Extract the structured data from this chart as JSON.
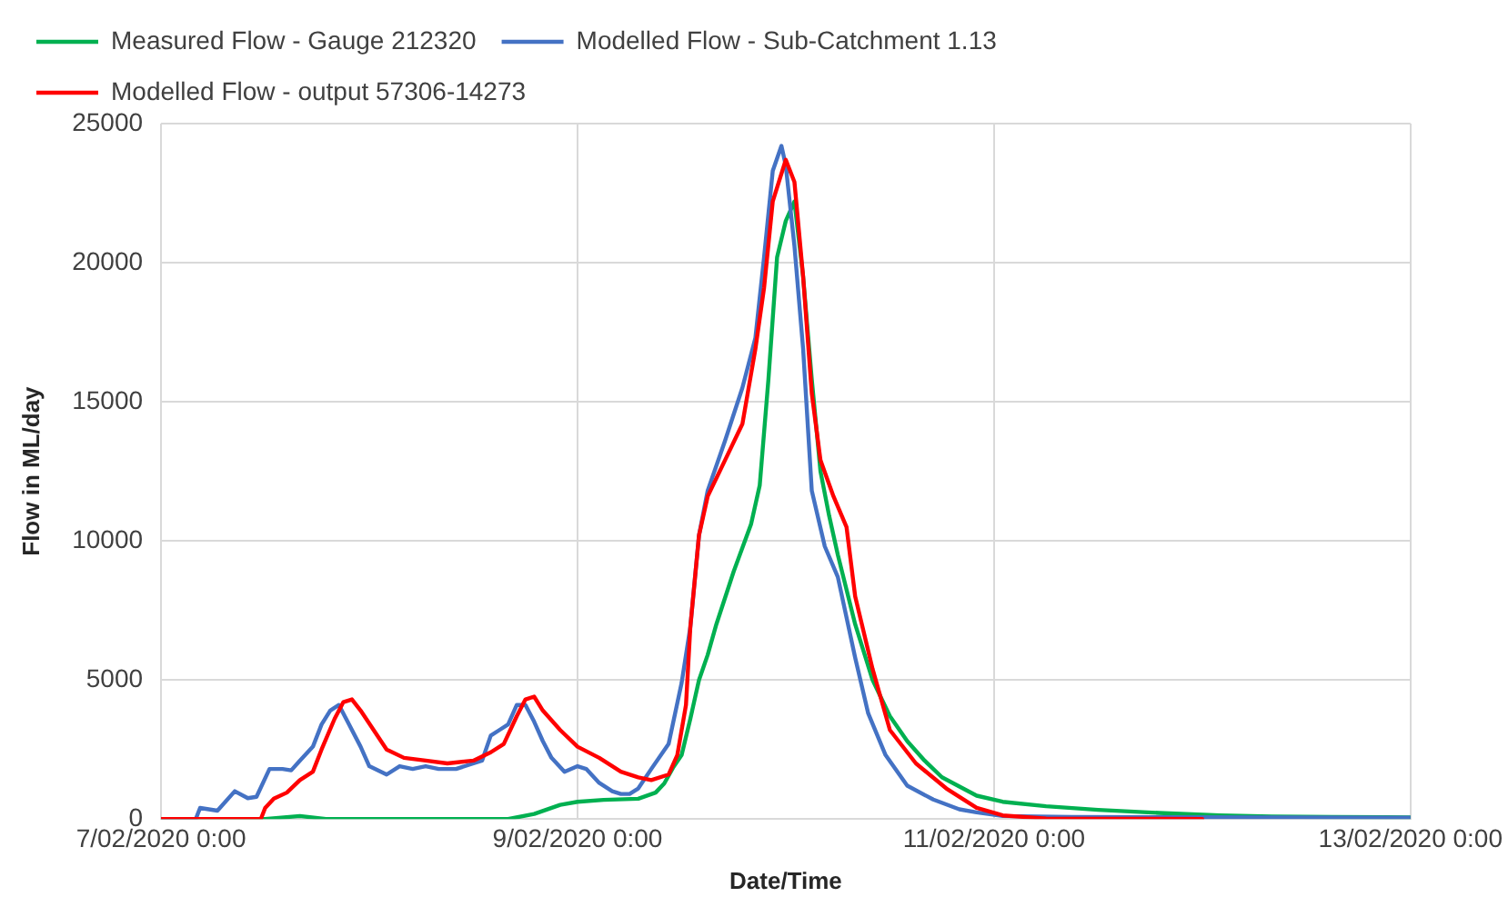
{
  "chart_data": {
    "type": "line",
    "xlabel": "Date/Time",
    "ylabel": "Flow in ML/day",
    "legend": "top",
    "grid": true,
    "marker": "none",
    "line_style": "solid",
    "xlim": [
      "2020-02-07T00:00",
      "2020-02-13T00:00"
    ],
    "xticks": [
      {
        "value": "2020-02-07T00:00",
        "label": "7/02/2020 0:00"
      },
      {
        "value": "2020-02-09T00:00",
        "label": "9/02/2020 0:00"
      },
      {
        "value": "2020-02-11T00:00",
        "label": "11/02/2020 0:00"
      },
      {
        "value": "2020-02-13T00:00",
        "label": "13/02/2020 0:00"
      }
    ],
    "ylim": [
      0,
      25000
    ],
    "yticks": [
      0,
      5000,
      10000,
      15000,
      20000,
      25000
    ],
    "series": [
      {
        "name": "Measured Flow - Gauge 212320",
        "color": "#00b050",
        "x": [
          "2020-02-07T00:00",
          "2020-02-07T12:00",
          "2020-02-07T16:00",
          "2020-02-07T19:00",
          "2020-02-08T16:00",
          "2020-02-08T19:00",
          "2020-02-08T22:00",
          "2020-02-09T00:00",
          "2020-02-09T03:00",
          "2020-02-09T07:00",
          "2020-02-09T09:00",
          "2020-02-09T10:00",
          "2020-02-09T11:00",
          "2020-02-09T12:00",
          "2020-02-09T13:00",
          "2020-02-09T14:00",
          "2020-02-09T15:00",
          "2020-02-09T16:00",
          "2020-02-09T18:00",
          "2020-02-09T20:00",
          "2020-02-09T21:00",
          "2020-02-09T22:00",
          "2020-02-09T23:00",
          "2020-02-10T00:00",
          "2020-02-10T01:00",
          "2020-02-10T02:00",
          "2020-02-10T03:00",
          "2020-02-10T04:00",
          "2020-02-10T05:00",
          "2020-02-10T06:00",
          "2020-02-10T08:00",
          "2020-02-10T10:00",
          "2020-02-10T12:00",
          "2020-02-10T14:00",
          "2020-02-10T16:00",
          "2020-02-10T18:00",
          "2020-02-10T22:00",
          "2020-02-11T01:00",
          "2020-02-11T06:00",
          "2020-02-11T12:00",
          "2020-02-11T19:00",
          "2020-02-12T02:00",
          "2020-02-12T08:00",
          "2020-02-12T15:00",
          "2020-02-13T00:00"
        ],
        "values": [
          0,
          0,
          110,
          0,
          0,
          180,
          510,
          620,
          690,
          730,
          950,
          1280,
          1840,
          2300,
          3600,
          5000,
          5900,
          7000,
          8900,
          10600,
          12000,
          15800,
          20200,
          21500,
          22200,
          19500,
          15800,
          12500,
          10900,
          9500,
          7000,
          5000,
          3700,
          2800,
          2100,
          1500,
          840,
          620,
          460,
          330,
          220,
          130,
          90,
          70,
          60
        ]
      },
      {
        "name": "Modelled Flow - Sub-Catchment 1.13",
        "color": "#4472c4",
        "x": [
          "2020-02-07T00:00",
          "2020-02-07T04:00",
          "2020-02-07T04:30",
          "2020-02-07T06:30",
          "2020-02-07T08:30",
          "2020-02-07T10:00",
          "2020-02-07T11:00",
          "2020-02-07T12:30",
          "2020-02-07T14:00",
          "2020-02-07T15:00",
          "2020-02-07T16:00",
          "2020-02-07T17:30",
          "2020-02-07T18:30",
          "2020-02-07T19:30",
          "2020-02-07T20:30",
          "2020-02-07T21:30",
          "2020-02-07T23:00",
          "2020-02-08T00:00",
          "2020-02-08T02:00",
          "2020-02-08T03:30",
          "2020-02-08T05:00",
          "2020-02-08T06:30",
          "2020-02-08T08:00",
          "2020-02-08T10:00",
          "2020-02-08T12:00",
          "2020-02-08T13:00",
          "2020-02-08T14:00",
          "2020-02-08T15:00",
          "2020-02-08T16:00",
          "2020-02-08T17:00",
          "2020-02-08T18:00",
          "2020-02-08T19:00",
          "2020-02-08T20:00",
          "2020-02-08T21:00",
          "2020-02-08T22:30",
          "2020-02-09T00:00",
          "2020-02-09T01:00",
          "2020-02-09T02:30",
          "2020-02-09T04:00",
          "2020-02-09T05:00",
          "2020-02-09T06:00",
          "2020-02-09T07:00",
          "2020-02-09T08:30",
          "2020-02-09T10:30",
          "2020-02-09T12:00",
          "2020-02-09T13:00",
          "2020-02-09T14:00",
          "2020-02-09T15:00",
          "2020-02-09T17:00",
          "2020-02-09T19:00",
          "2020-02-09T20:30",
          "2020-02-09T21:30",
          "2020-02-09T22:30",
          "2020-02-09T23:30",
          "2020-02-10T00:00",
          "2020-02-10T01:00",
          "2020-02-10T02:00",
          "2020-02-10T03:00",
          "2020-02-10T04:30",
          "2020-02-10T06:00",
          "2020-02-10T08:00",
          "2020-02-10T09:30",
          "2020-02-10T11:30",
          "2020-02-10T14:00",
          "2020-02-10T17:00",
          "2020-02-10T20:00",
          "2020-02-10T22:00",
          "2020-02-11T01:00",
          "2020-02-11T09:00",
          "2020-02-13T00:00"
        ],
        "values": [
          0,
          0,
          400,
          300,
          1000,
          750,
          800,
          1800,
          1800,
          1750,
          2100,
          2600,
          3400,
          3900,
          4100,
          3500,
          2600,
          1900,
          1600,
          1900,
          1800,
          1900,
          1800,
          1800,
          2000,
          2100,
          3000,
          3200,
          3400,
          4100,
          4100,
          3500,
          2800,
          2200,
          1700,
          1900,
          1800,
          1300,
          1000,
          900,
          900,
          1100,
          1800,
          2700,
          4900,
          6900,
          10200,
          11800,
          13600,
          15500,
          17300,
          20200,
          23300,
          24200,
          23500,
          20600,
          16900,
          11800,
          9800,
          8700,
          5800,
          3800,
          2300,
          1200,
          700,
          350,
          240,
          110,
          70,
          50
        ]
      },
      {
        "name": "Modelled Flow - output 57306-14273",
        "color": "#ff0000",
        "x": [
          "2020-02-07T00:00",
          "2020-02-07T11:30",
          "2020-02-07T12:00",
          "2020-02-07T13:00",
          "2020-02-07T14:30",
          "2020-02-07T16:00",
          "2020-02-07T17:30",
          "2020-02-07T18:30",
          "2020-02-07T20:00",
          "2020-02-07T21:00",
          "2020-02-07T22:00",
          "2020-02-07T23:00",
          "2020-02-08T00:30",
          "2020-02-08T02:00",
          "2020-02-08T04:00",
          "2020-02-08T06:30",
          "2020-02-08T09:00",
          "2020-02-08T12:00",
          "2020-02-08T14:00",
          "2020-02-08T15:30",
          "2020-02-08T17:00",
          "2020-02-08T18:00",
          "2020-02-08T19:00",
          "2020-02-08T20:00",
          "2020-02-08T22:00",
          "2020-02-09T00:00",
          "2020-02-09T02:30",
          "2020-02-09T05:00",
          "2020-02-09T07:00",
          "2020-02-09T08:30",
          "2020-02-09T10:30",
          "2020-02-09T11:30",
          "2020-02-09T12:30",
          "2020-02-09T13:00",
          "2020-02-09T14:00",
          "2020-02-09T15:00",
          "2020-02-09T17:00",
          "2020-02-09T19:00",
          "2020-02-09T20:30",
          "2020-02-09T21:30",
          "2020-02-09T22:30",
          "2020-02-10T00:00",
          "2020-02-10T01:00",
          "2020-02-10T02:00",
          "2020-02-10T03:00",
          "2020-02-10T04:00",
          "2020-02-10T05:30",
          "2020-02-10T07:00",
          "2020-02-10T08:00",
          "2020-02-10T10:00",
          "2020-02-10T12:00",
          "2020-02-10T15:00",
          "2020-02-10T18:30",
          "2020-02-10T22:00",
          "2020-02-11T01:00",
          "2020-02-11T06:00",
          "2020-02-12T00:00"
        ],
        "values": [
          0,
          0,
          400,
          730,
          950,
          1400,
          1700,
          2500,
          3600,
          4200,
          4300,
          3900,
          3200,
          2500,
          2200,
          2100,
          2000,
          2100,
          2400,
          2700,
          3700,
          4300,
          4400,
          3900,
          3200,
          2600,
          2200,
          1700,
          1500,
          1400,
          1600,
          2300,
          4100,
          6900,
          10200,
          11600,
          12900,
          14200,
          16900,
          19100,
          22200,
          23700,
          22900,
          19500,
          15300,
          12900,
          11600,
          10500,
          8000,
          5400,
          3200,
          2000,
          1100,
          400,
          130,
          20,
          0
        ]
      }
    ]
  }
}
